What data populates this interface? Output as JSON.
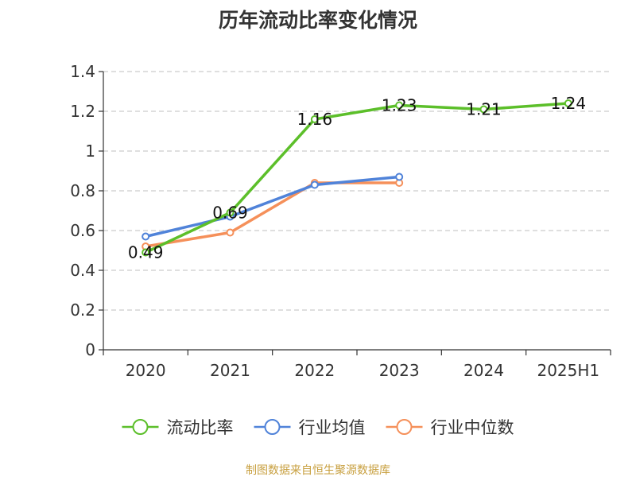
{
  "chart_data": {
    "type": "line",
    "title": "历年流动比率变化情况",
    "categories": [
      "2020",
      "2021",
      "2022",
      "2023",
      "2024",
      "2025H1"
    ],
    "ylim": [
      0,
      1.4
    ],
    "yticks": [
      0,
      0.2,
      0.4,
      0.6,
      0.8,
      1,
      1.2,
      1.4
    ],
    "ytick_labels": [
      "0",
      "0.2",
      "0.4",
      "0.6",
      "0.8",
      "1",
      "1.2",
      "1.4"
    ],
    "grid": true,
    "legend_position": "bottom",
    "series": [
      {
        "name": "流动比率",
        "color": "#5cbf2a",
        "values": [
          0.49,
          0.69,
          1.16,
          1.23,
          1.21,
          1.24
        ],
        "labels": [
          "0.49",
          "0.69",
          "1.16",
          "1.23",
          "1.21",
          "1.24"
        ]
      },
      {
        "name": "行业均值",
        "color": "#5083d9",
        "values": [
          0.57,
          0.67,
          0.83,
          0.87,
          null,
          null
        ],
        "labels": []
      },
      {
        "name": "行业中位数",
        "color": "#f5905a",
        "values": [
          0.52,
          0.59,
          0.84,
          0.84,
          null,
          null
        ],
        "labels": []
      }
    ]
  },
  "footer": {
    "source": "制图数据来自恒生聚源数据库",
    "source_color": "#c8a040"
  },
  "colors": {
    "axis": "#333333",
    "grid": "#cccccc"
  }
}
